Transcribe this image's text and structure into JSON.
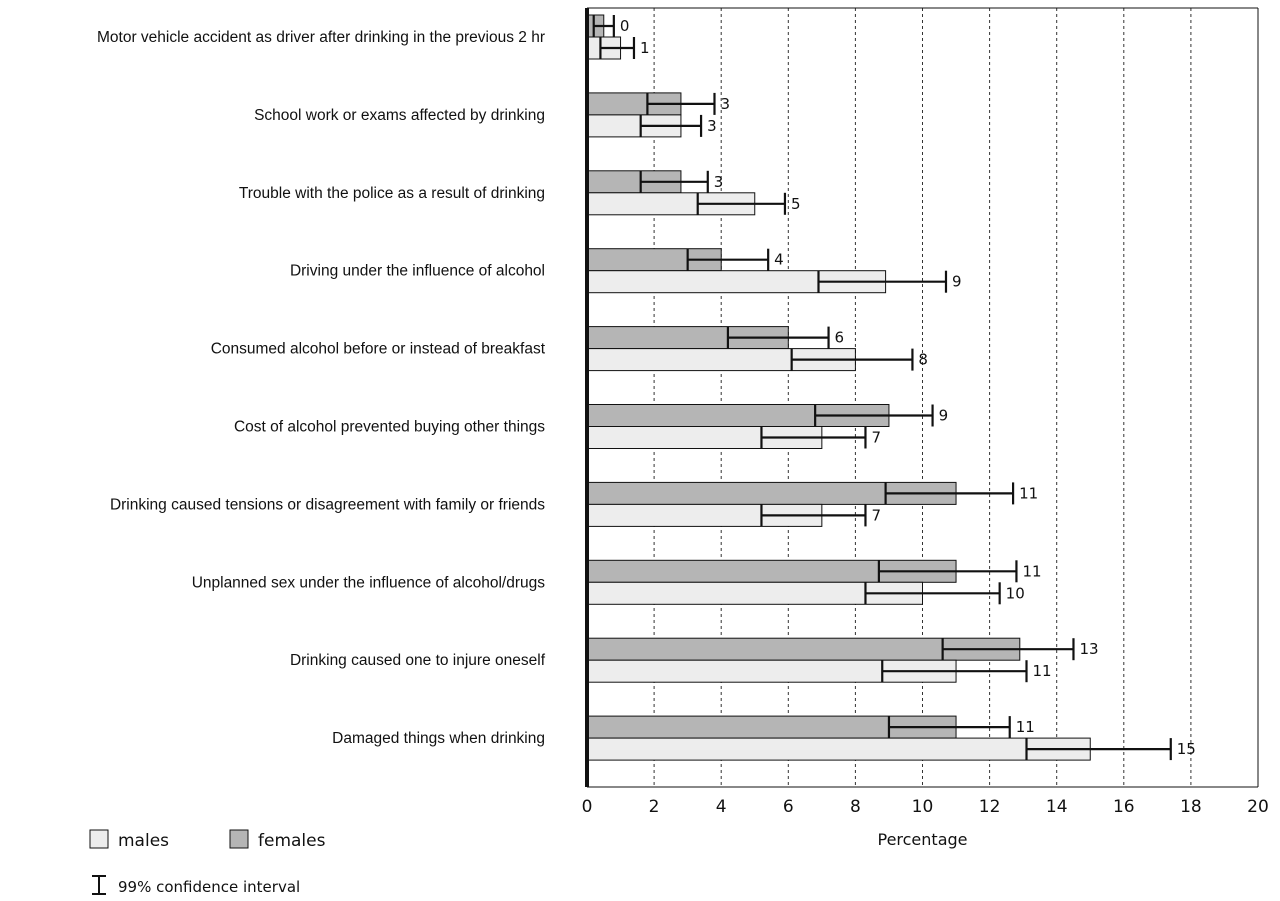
{
  "chart_data": {
    "type": "bar",
    "orientation": "horizontal",
    "categories": [
      "Motor vehicle accident as driver after drinking in the previous 2 hr",
      "School work or exams affected by drinking",
      "Trouble with the police as a result of drinking",
      "Driving under the influence of alcohol",
      "Consumed alcohol before or instead of breakfast",
      "Cost of alcohol prevented buying other things",
      "Drinking caused tensions or disagreement with family or friends",
      "Unplanned sex under the influence of alcohol/drugs",
      "Drinking caused one to injure oneself",
      "Damaged things when drinking"
    ],
    "series": [
      {
        "name": "females",
        "color": "#b5b5b5",
        "values": [
          0.5,
          2.8,
          2.8,
          4.0,
          6.0,
          9.0,
          11.0,
          11.0,
          12.9,
          11.0
        ],
        "ci_low": [
          0.2,
          1.8,
          1.6,
          3.0,
          4.2,
          6.8,
          8.9,
          8.7,
          10.6,
          9.0
        ],
        "ci_high": [
          0.8,
          3.8,
          3.6,
          5.4,
          7.2,
          10.3,
          12.7,
          12.8,
          14.5,
          12.6
        ],
        "labels": [
          "0",
          "3",
          "3",
          "4",
          "6",
          "9",
          "11",
          "11",
          "13",
          "11"
        ]
      },
      {
        "name": "males",
        "color": "#ededed",
        "values": [
          1.0,
          2.8,
          5.0,
          8.9,
          8.0,
          7.0,
          7.0,
          10.0,
          11.0,
          15.0
        ],
        "ci_low": [
          0.4,
          1.6,
          3.3,
          6.9,
          6.1,
          5.2,
          5.2,
          8.3,
          8.8,
          13.1
        ],
        "ci_high": [
          1.4,
          3.4,
          5.9,
          10.7,
          9.7,
          8.3,
          8.3,
          12.3,
          13.1,
          17.4
        ],
        "labels": [
          "1",
          "3",
          "5",
          "9",
          "8",
          "7",
          "7",
          "10",
          "11",
          "15"
        ]
      }
    ],
    "xlabel": "Percentage",
    "xlim": [
      0,
      20
    ],
    "xticks": [
      0,
      2,
      4,
      6,
      8,
      10,
      12,
      14,
      16,
      18,
      20
    ],
    "grid": "vertical dashed",
    "legend": {
      "placement": "bottom-left",
      "items": [
        "males",
        "females"
      ],
      "ci_label": "99% confidence interval"
    }
  }
}
